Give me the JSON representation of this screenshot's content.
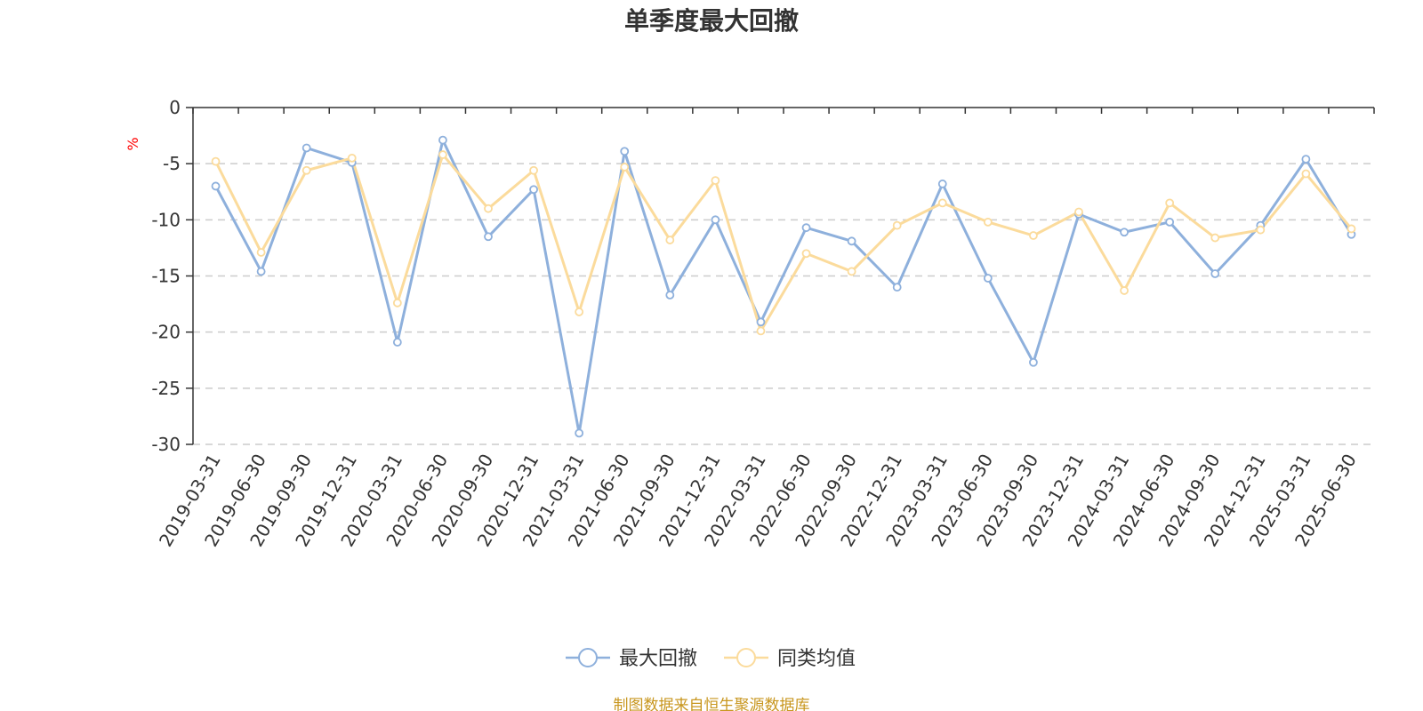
{
  "colors": {
    "series_max_drawdown": "#8eb0dc",
    "series_peer_average": "#fbdb9c",
    "axis": "#333333",
    "grid": "#cccccc",
    "unit_label": "#ff0000",
    "source_text": "#c8961e"
  },
  "chart_data": {
    "type": "line",
    "title": "单季度最大回撤",
    "ylabel": "%",
    "xlabel": "",
    "ylim": [
      -30,
      0
    ],
    "yticks": [
      0,
      -5,
      -10,
      -15,
      -20,
      -25,
      -30
    ],
    "grid": true,
    "legend_position": "bottom-center",
    "categories": [
      "2019-03-31",
      "2019-06-30",
      "2019-09-30",
      "2019-12-31",
      "2020-03-31",
      "2020-06-30",
      "2020-09-30",
      "2020-12-31",
      "2021-03-31",
      "2021-06-30",
      "2021-09-30",
      "2021-12-31",
      "2022-03-31",
      "2022-06-30",
      "2022-09-30",
      "2022-12-31",
      "2023-03-31",
      "2023-06-30",
      "2023-09-30",
      "2023-12-31",
      "2024-03-31",
      "2024-06-30",
      "2024-09-30",
      "2024-12-31",
      "2025-03-31",
      "2025-06-30"
    ],
    "series": [
      {
        "name": "最大回撤",
        "values": [
          -7.0,
          -14.6,
          -3.6,
          -4.9,
          -20.9,
          -2.9,
          -11.5,
          -7.3,
          -29.0,
          -3.9,
          -16.7,
          -10.0,
          -19.1,
          -10.7,
          -11.9,
          -16.0,
          -6.8,
          -15.2,
          -22.7,
          -9.5,
          -11.1,
          -10.2,
          -14.8,
          -10.5,
          -4.6,
          -11.3
        ]
      },
      {
        "name": "同类均值",
        "values": [
          -4.8,
          -12.9,
          -5.6,
          -4.5,
          -17.4,
          -4.2,
          -9.0,
          -5.6,
          -18.2,
          -5.3,
          -11.8,
          -6.5,
          -19.9,
          -13.0,
          -14.6,
          -10.5,
          -8.5,
          -10.2,
          -11.4,
          -9.3,
          -16.3,
          -8.5,
          -11.6,
          -10.9,
          -5.9,
          -10.8
        ]
      }
    ]
  },
  "source_note": "制图数据来自恒生聚源数据库"
}
